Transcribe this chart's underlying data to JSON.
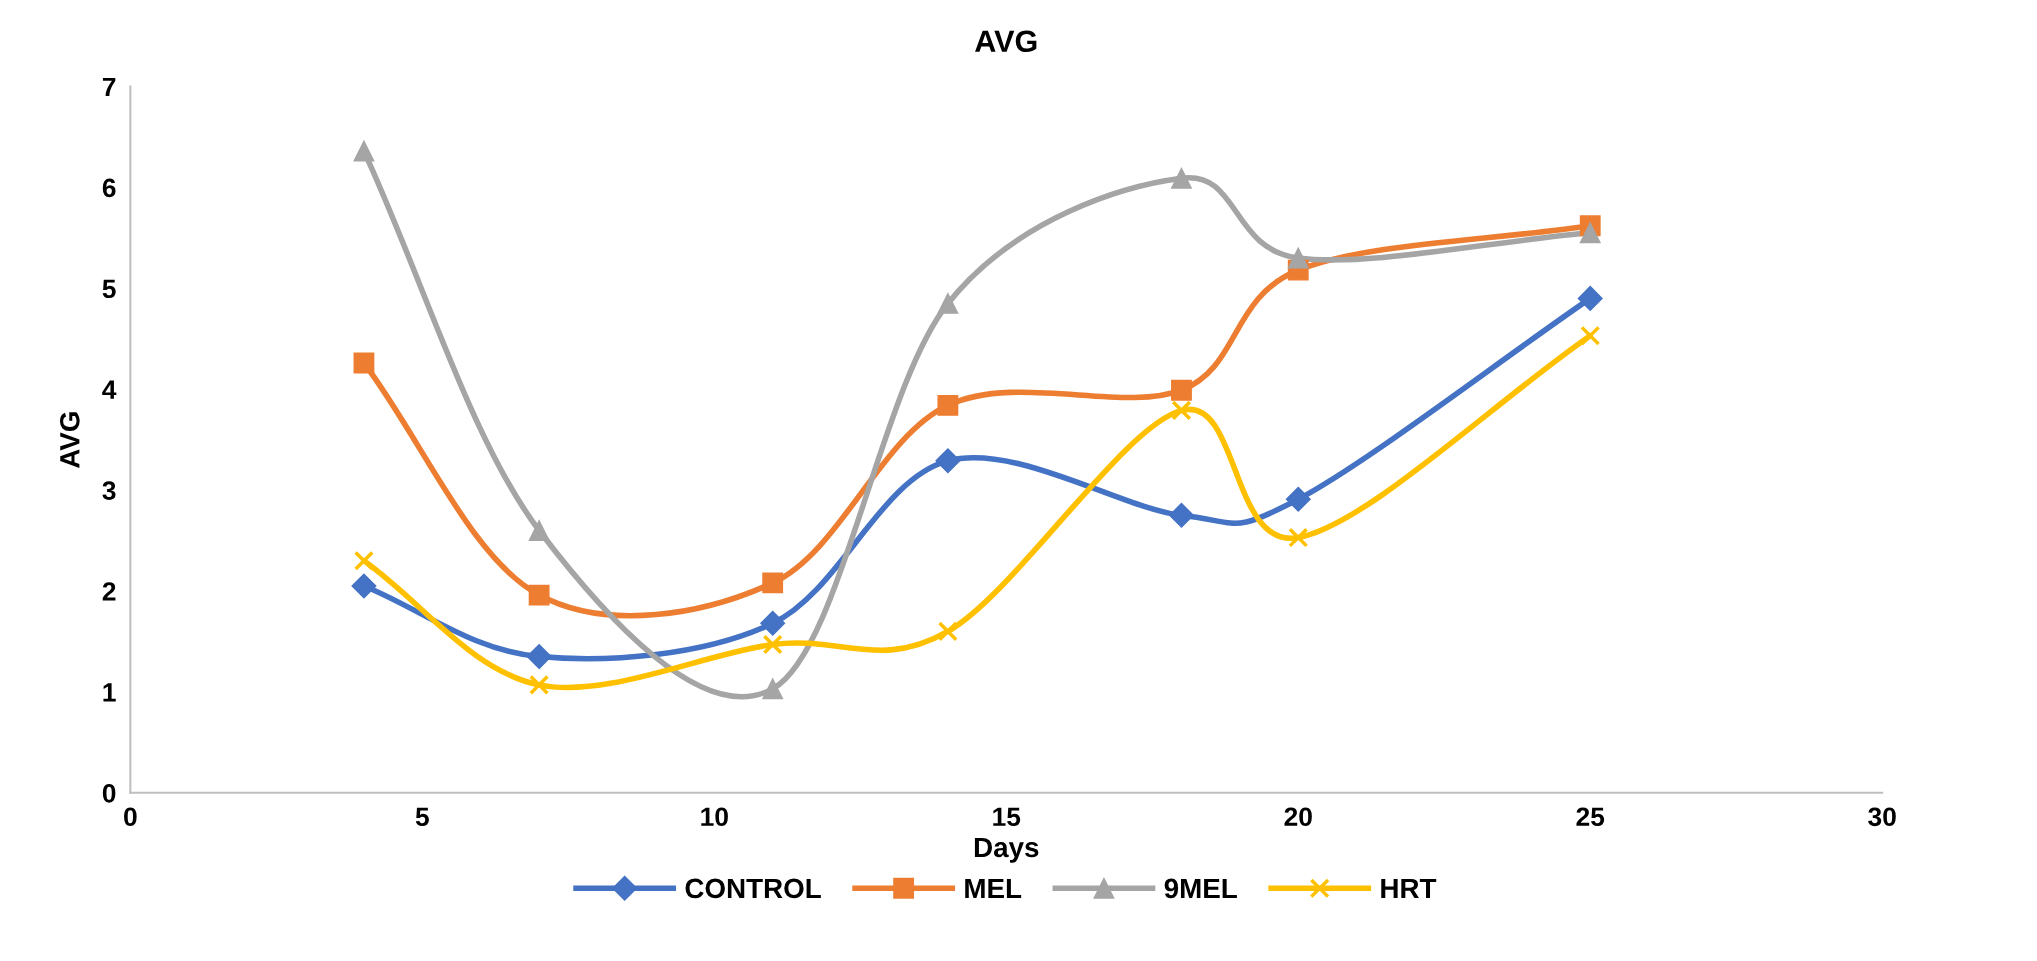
{
  "chart_data": {
    "type": "line",
    "title": "AVG",
    "xlabel": "Days",
    "ylabel": "AVG",
    "x": [
      4,
      7,
      11,
      14,
      18,
      20,
      25
    ],
    "series": [
      {
        "name": "CONTROL",
        "color": "#4472c4",
        "marker": "diamond",
        "values": [
          2.05,
          1.35,
          1.68,
          3.29,
          2.75,
          2.91,
          4.9
        ]
      },
      {
        "name": "MEL",
        "color": "#ed7d31",
        "marker": "square",
        "values": [
          4.26,
          1.96,
          2.08,
          3.84,
          3.99,
          5.18,
          5.62
        ]
      },
      {
        "name": "9MEL",
        "color": "#a5a5a5",
        "marker": "triangle",
        "values": [
          6.36,
          2.6,
          1.03,
          4.85,
          6.09,
          5.3,
          5.55
        ]
      },
      {
        "name": "HRT",
        "color": "#ffc000",
        "marker": "cross",
        "values": [
          2.3,
          1.07,
          1.47,
          1.6,
          3.79,
          2.53,
          4.53
        ]
      }
    ],
    "xlim": [
      0,
      30
    ],
    "xticks": [
      0,
      5,
      10,
      15,
      20,
      25,
      30
    ],
    "ylim": [
      0,
      7
    ],
    "yticks": [
      0,
      1,
      2,
      3,
      4,
      5,
      6,
      7
    ],
    "grid": false,
    "legend": "bottom",
    "line_style": "solid"
  }
}
